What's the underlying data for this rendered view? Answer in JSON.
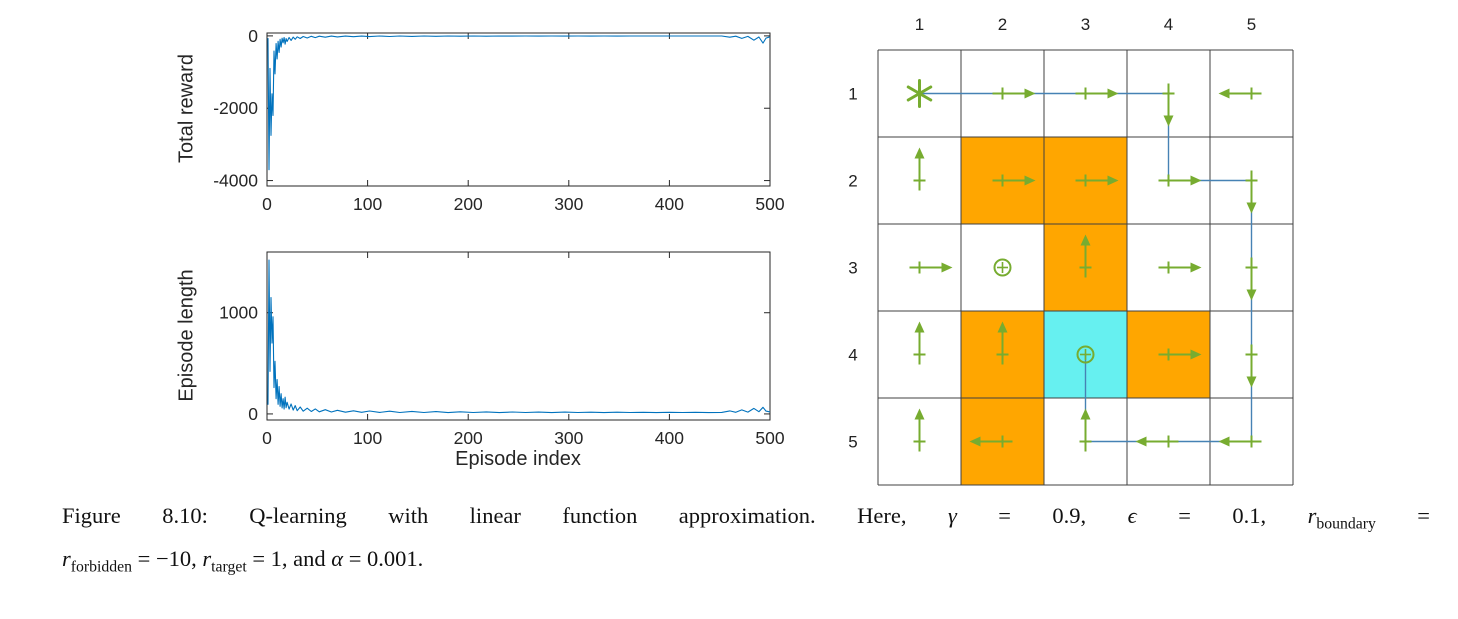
{
  "chart_data": [
    {
      "type": "line",
      "name": "total-reward",
      "title": "",
      "xlabel": "",
      "ylabel": "Total reward",
      "xlim": [
        0,
        500
      ],
      "ylim": [
        -4150,
        80
      ],
      "xticks": [
        0,
        100,
        200,
        300,
        400,
        500
      ],
      "yticks": [
        0,
        -2000,
        -4000
      ],
      "line_color": "#0072bd",
      "axis_color": "#262626",
      "grid": "off",
      "points": [
        [
          1,
          -60
        ],
        [
          2,
          -3700
        ],
        [
          3,
          -900
        ],
        [
          4,
          -2750
        ],
        [
          5,
          -1600
        ],
        [
          6,
          -2200
        ],
        [
          7,
          -420
        ],
        [
          8,
          -1050
        ],
        [
          9,
          -210
        ],
        [
          10,
          -640
        ],
        [
          11,
          -150
        ],
        [
          12,
          -460
        ],
        [
          13,
          -95
        ],
        [
          14,
          -310
        ],
        [
          15,
          -65
        ],
        [
          16,
          -190
        ],
        [
          17,
          -45
        ],
        [
          18,
          -230
        ],
        [
          19,
          -75
        ],
        [
          20,
          -155
        ],
        [
          22,
          -45
        ],
        [
          24,
          -125
        ],
        [
          26,
          -32
        ],
        [
          28,
          -95
        ],
        [
          30,
          -26
        ],
        [
          33,
          -72
        ],
        [
          36,
          -16
        ],
        [
          40,
          -58
        ],
        [
          44,
          -12
        ],
        [
          48,
          -46
        ],
        [
          52,
          -9
        ],
        [
          58,
          -36
        ],
        [
          64,
          -7
        ],
        [
          70,
          -29
        ],
        [
          78,
          -6
        ],
        [
          86,
          -23
        ],
        [
          94,
          -5
        ],
        [
          102,
          -19
        ],
        [
          112,
          -4
        ],
        [
          122,
          -16
        ],
        [
          132,
          -3
        ],
        [
          144,
          -13
        ],
        [
          156,
          -3
        ],
        [
          168,
          -11
        ],
        [
          180,
          -2
        ],
        [
          192,
          -9
        ],
        [
          205,
          -3
        ],
        [
          218,
          -8
        ],
        [
          231,
          -2
        ],
        [
          244,
          -7
        ],
        [
          257,
          -3
        ],
        [
          270,
          -6
        ],
        [
          283,
          -2
        ],
        [
          296,
          -6
        ],
        [
          309,
          -3
        ],
        [
          322,
          -5
        ],
        [
          335,
          -2
        ],
        [
          348,
          -5
        ],
        [
          361,
          -3
        ],
        [
          374,
          -4
        ],
        [
          387,
          -2
        ],
        [
          400,
          -4
        ],
        [
          413,
          -3
        ],
        [
          426,
          -4
        ],
        [
          439,
          -2
        ],
        [
          452,
          -4
        ],
        [
          460,
          -35
        ],
        [
          466,
          -8
        ],
        [
          472,
          -70
        ],
        [
          478,
          -15
        ],
        [
          484,
          -120
        ],
        [
          489,
          -30
        ],
        [
          493,
          -200
        ],
        [
          496,
          -60
        ],
        [
          500,
          -25
        ]
      ]
    },
    {
      "type": "line",
      "name": "episode-length",
      "title": "",
      "xlabel": "Episode index",
      "ylabel": "Episode length",
      "xlim": [
        0,
        500
      ],
      "ylim": [
        -60,
        1600
      ],
      "xticks": [
        0,
        100,
        200,
        300,
        400,
        500
      ],
      "yticks": [
        0,
        1000
      ],
      "line_color": "#0072bd",
      "axis_color": "#262626",
      "grid": "off",
      "points": [
        [
          1,
          90
        ],
        [
          2,
          1520
        ],
        [
          3,
          420
        ],
        [
          4,
          1150
        ],
        [
          5,
          700
        ],
        [
          6,
          960
        ],
        [
          7,
          260
        ],
        [
          8,
          520
        ],
        [
          9,
          150
        ],
        [
          10,
          340
        ],
        [
          11,
          95
        ],
        [
          12,
          270
        ],
        [
          13,
          75
        ],
        [
          14,
          200
        ],
        [
          15,
          60
        ],
        [
          16,
          150
        ],
        [
          17,
          48
        ],
        [
          18,
          165
        ],
        [
          19,
          62
        ],
        [
          20,
          115
        ],
        [
          22,
          48
        ],
        [
          24,
          98
        ],
        [
          26,
          38
        ],
        [
          28,
          82
        ],
        [
          30,
          32
        ],
        [
          33,
          68
        ],
        [
          36,
          27
        ],
        [
          40,
          57
        ],
        [
          44,
          24
        ],
        [
          48,
          50
        ],
        [
          52,
          21
        ],
        [
          58,
          42
        ],
        [
          64,
          19
        ],
        [
          70,
          36
        ],
        [
          78,
          17
        ],
        [
          86,
          31
        ],
        [
          94,
          16
        ],
        [
          102,
          29
        ],
        [
          112,
          15
        ],
        [
          122,
          27
        ],
        [
          132,
          14
        ],
        [
          144,
          25
        ],
        [
          156,
          14
        ],
        [
          168,
          23
        ],
        [
          180,
          13
        ],
        [
          192,
          21
        ],
        [
          205,
          14
        ],
        [
          218,
          20
        ],
        [
          231,
          13
        ],
        [
          244,
          19
        ],
        [
          257,
          14
        ],
        [
          270,
          18
        ],
        [
          283,
          13
        ],
        [
          296,
          18
        ],
        [
          309,
          14
        ],
        [
          322,
          17
        ],
        [
          335,
          13
        ],
        [
          348,
          17
        ],
        [
          361,
          14
        ],
        [
          374,
          16
        ],
        [
          387,
          13
        ],
        [
          400,
          16
        ],
        [
          413,
          14
        ],
        [
          426,
          16
        ],
        [
          439,
          13
        ],
        [
          452,
          15
        ],
        [
          460,
          30
        ],
        [
          466,
          16
        ],
        [
          472,
          40
        ],
        [
          478,
          18
        ],
        [
          484,
          55
        ],
        [
          489,
          22
        ],
        [
          493,
          65
        ],
        [
          496,
          28
        ],
        [
          500,
          20
        ]
      ]
    }
  ],
  "grid": {
    "rows": 5,
    "cols": 5,
    "col_labels": [
      "1",
      "2",
      "3",
      "4",
      "5"
    ],
    "row_labels": [
      "1",
      "2",
      "3",
      "4",
      "5"
    ],
    "forbidden_cells": [
      [
        2,
        2
      ],
      [
        3,
        2
      ],
      [
        3,
        3
      ],
      [
        2,
        4
      ],
      [
        4,
        4
      ],
      [
        2,
        5
      ]
    ],
    "target_cell": [
      3,
      4
    ],
    "start_cell": [
      1,
      1
    ],
    "colors": {
      "forbidden": "#ffa600",
      "target": "#66f0f0",
      "arrow": "#77ac30",
      "trajectory": "#4682b4",
      "line": "#404040",
      "label": "#222222"
    },
    "policy": [
      [
        "start",
        "right",
        "right",
        "down",
        "left"
      ],
      [
        "up",
        "right",
        "right",
        "right",
        "down"
      ],
      [
        "right",
        "stay",
        "up",
        "right",
        "down"
      ],
      [
        "up",
        "up",
        "stay",
        "right",
        "down"
      ],
      [
        "up",
        "left",
        "up",
        "left",
        "left"
      ]
    ],
    "trajectory": [
      [
        1,
        1
      ],
      [
        4,
        1
      ],
      [
        4,
        2
      ],
      [
        5,
        2
      ],
      [
        5,
        5
      ],
      [
        3,
        5
      ],
      [
        3,
        4
      ]
    ]
  },
  "caption": {
    "line1": [
      {
        "t": "Figure 8.10:  Q-learning with linear function approximation.  Here, "
      },
      {
        "t": "γ",
        "i": true
      },
      {
        "t": " = 0.9, "
      },
      {
        "t": "ϵ",
        "i": true
      },
      {
        "t": " = 0.1, "
      },
      {
        "t": "r",
        "i": true
      },
      {
        "s": "boundary"
      },
      {
        "t": " ="
      }
    ],
    "line2": [
      {
        "t": "r",
        "i": true
      },
      {
        "s": "forbidden"
      },
      {
        "t": " = −10, "
      },
      {
        "t": "r",
        "i": true
      },
      {
        "s": "target"
      },
      {
        "t": " = 1, and "
      },
      {
        "t": "α",
        "i": true
      },
      {
        "t": " = 0.001."
      }
    ]
  }
}
